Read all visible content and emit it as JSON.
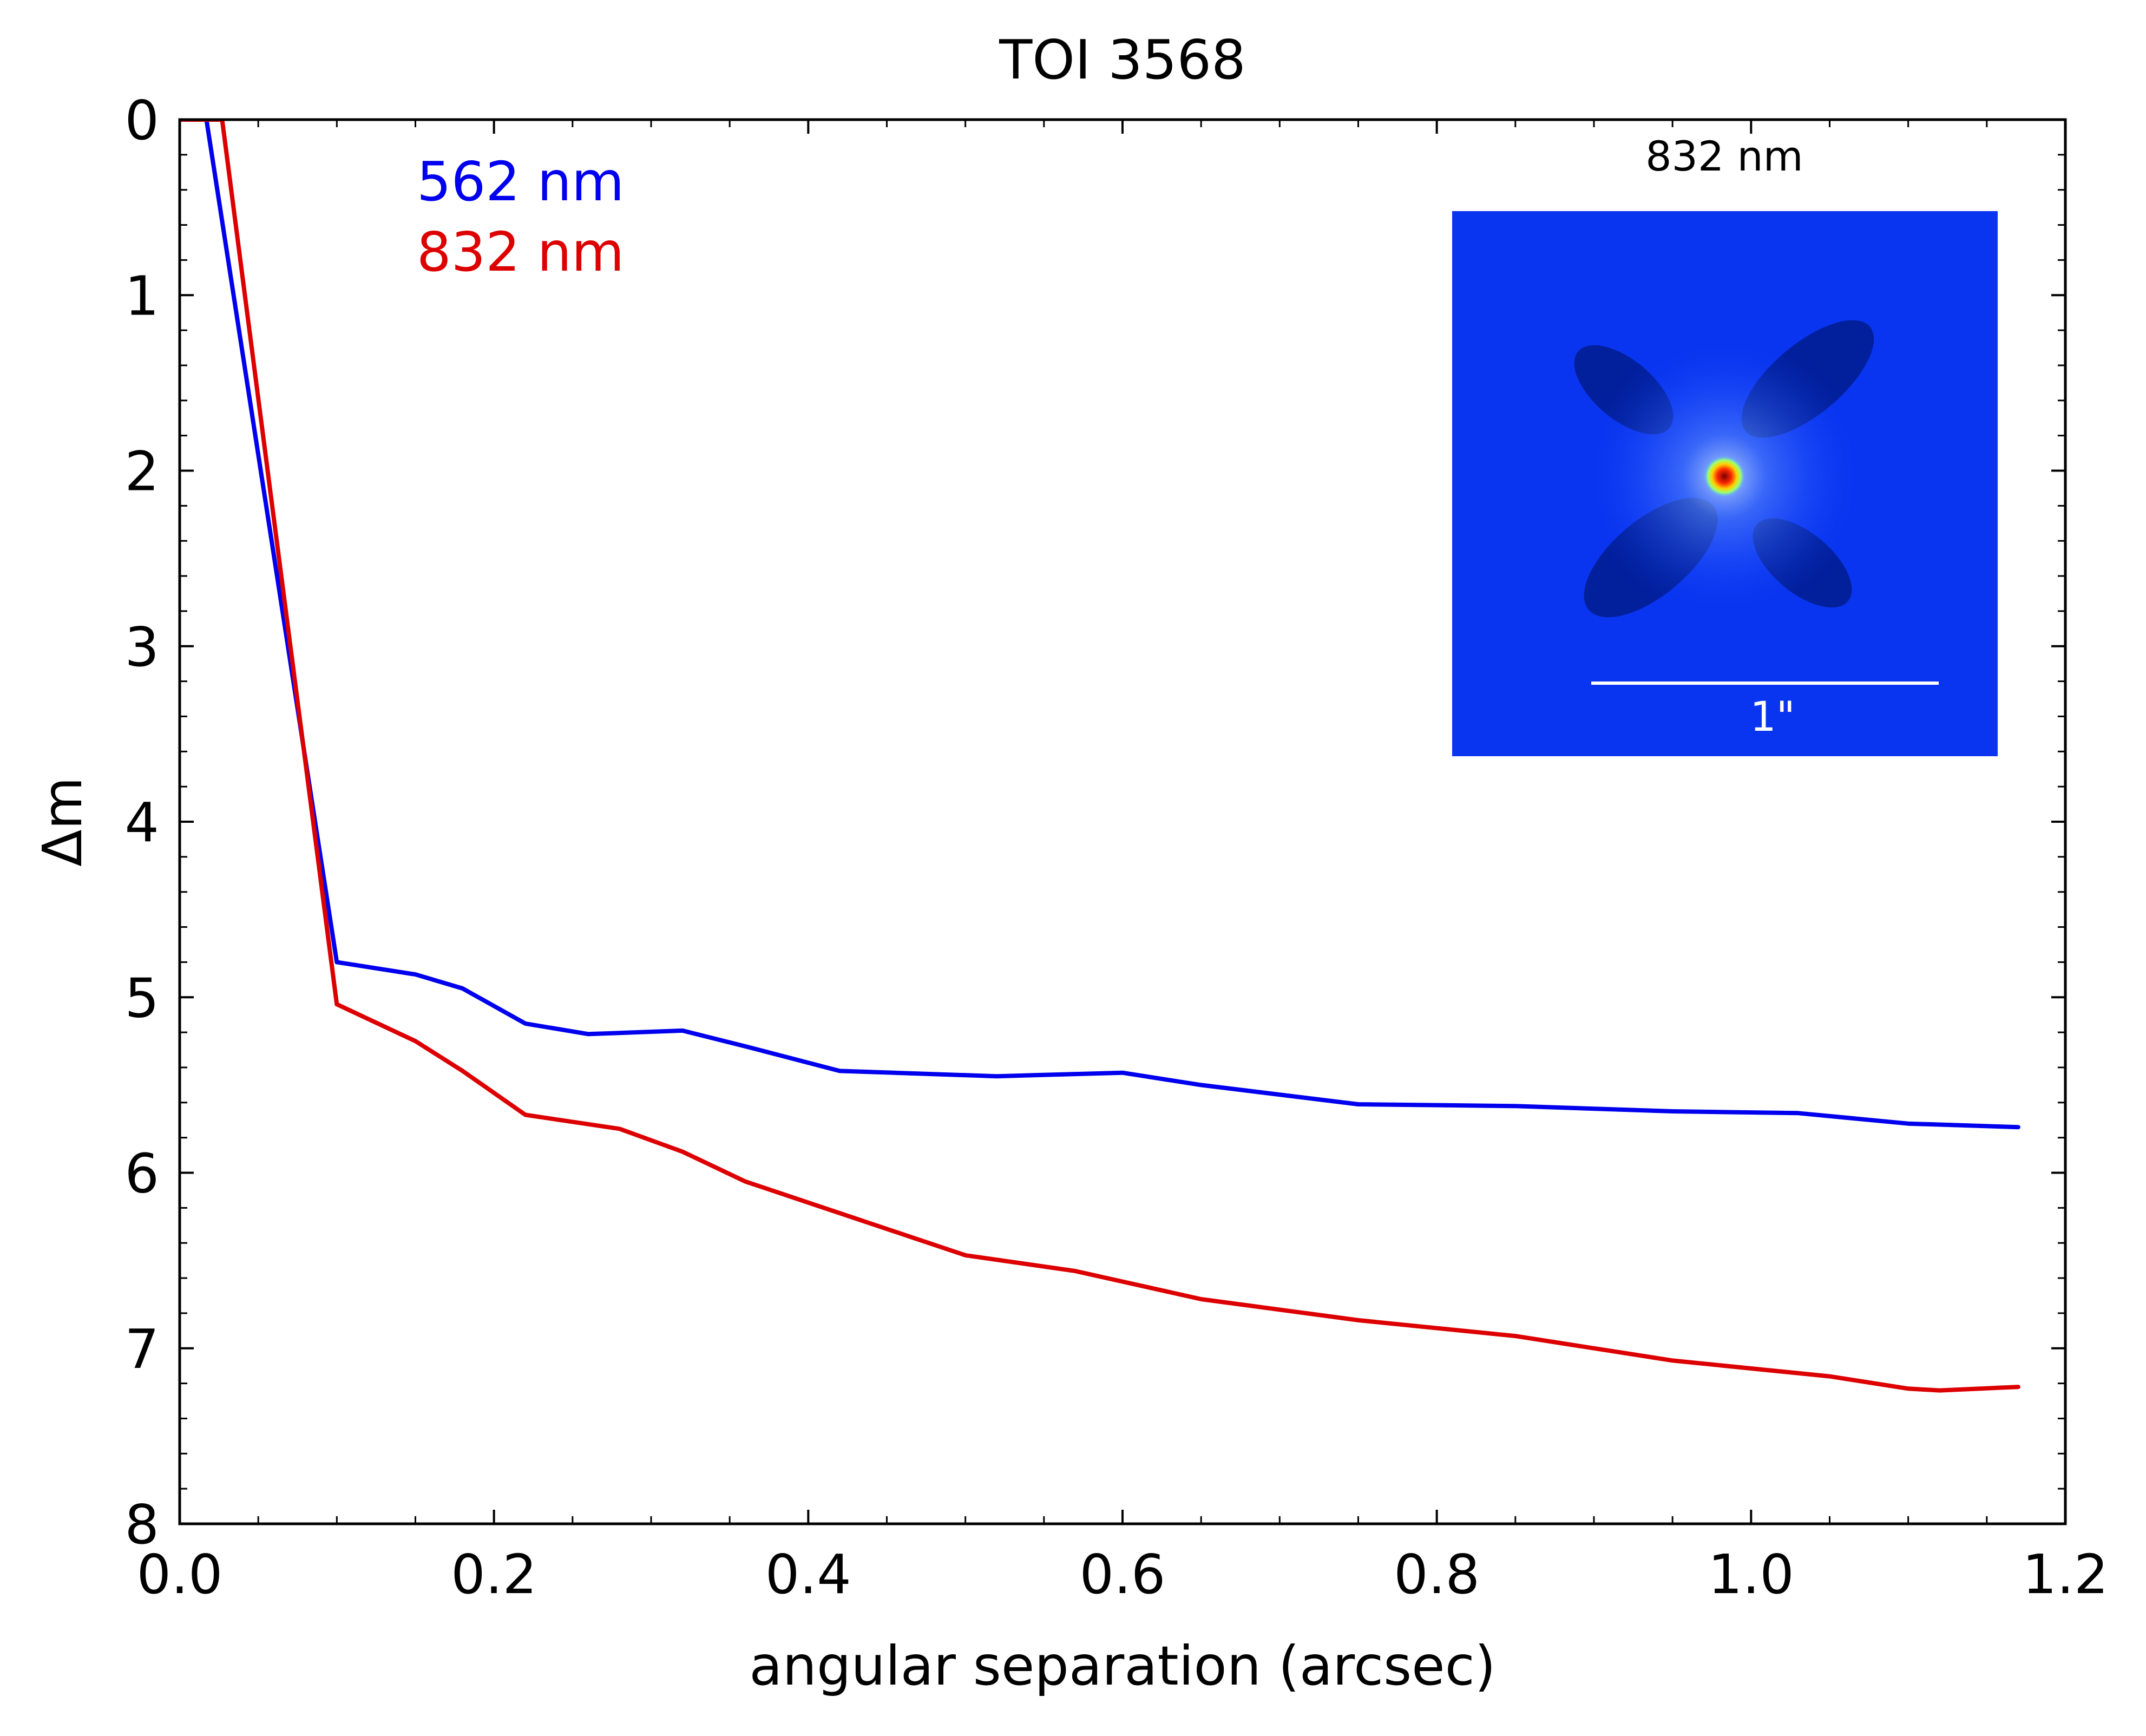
{
  "chart_data": {
    "type": "line",
    "title": "TOI 3568",
    "xlabel": "angular separation (arcsec)",
    "ylabel": "Δm",
    "xlim": [
      0.0,
      1.2
    ],
    "ylim": [
      8,
      0
    ],
    "y_inverted": true,
    "grid": false,
    "x_ticks": [
      "0.0",
      "0.2",
      "0.4",
      "0.6",
      "0.8",
      "1.0",
      "1.2"
    ],
    "y_ticks": [
      "0",
      "1",
      "2",
      "3",
      "4",
      "5",
      "6",
      "7",
      "8"
    ],
    "legend": {
      "placement": "top-left",
      "style": "colored text"
    },
    "series": [
      {
        "name": "562 nm",
        "color": "#0000ee",
        "x": [
          0.0,
          0.017,
          0.1,
          0.15,
          0.18,
          0.22,
          0.26,
          0.32,
          0.36,
          0.42,
          0.52,
          0.6,
          0.65,
          0.75,
          0.85,
          0.95,
          1.03,
          1.1,
          1.17
        ],
        "y": [
          0.0,
          0.0,
          4.8,
          4.87,
          4.95,
          5.15,
          5.21,
          5.19,
          5.28,
          5.42,
          5.45,
          5.43,
          5.5,
          5.61,
          5.62,
          5.65,
          5.66,
          5.72,
          5.74
        ]
      },
      {
        "name": "832 nm",
        "color": "#dd0000",
        "x": [
          0.0,
          0.027,
          0.1,
          0.15,
          0.18,
          0.22,
          0.28,
          0.32,
          0.36,
          0.42,
          0.5,
          0.57,
          0.65,
          0.75,
          0.85,
          0.95,
          1.05,
          1.1,
          1.12,
          1.17
        ],
        "y": [
          0.0,
          0.0,
          5.04,
          5.25,
          5.42,
          5.67,
          5.75,
          5.88,
          6.05,
          6.23,
          6.47,
          6.56,
          6.72,
          6.84,
          6.93,
          7.07,
          7.16,
          7.23,
          7.24,
          7.22
        ]
      }
    ],
    "inset": {
      "label": "832 nm",
      "scale_bar_label": "1\"",
      "colormap": "jet",
      "background_color": "#0a35f0"
    }
  }
}
